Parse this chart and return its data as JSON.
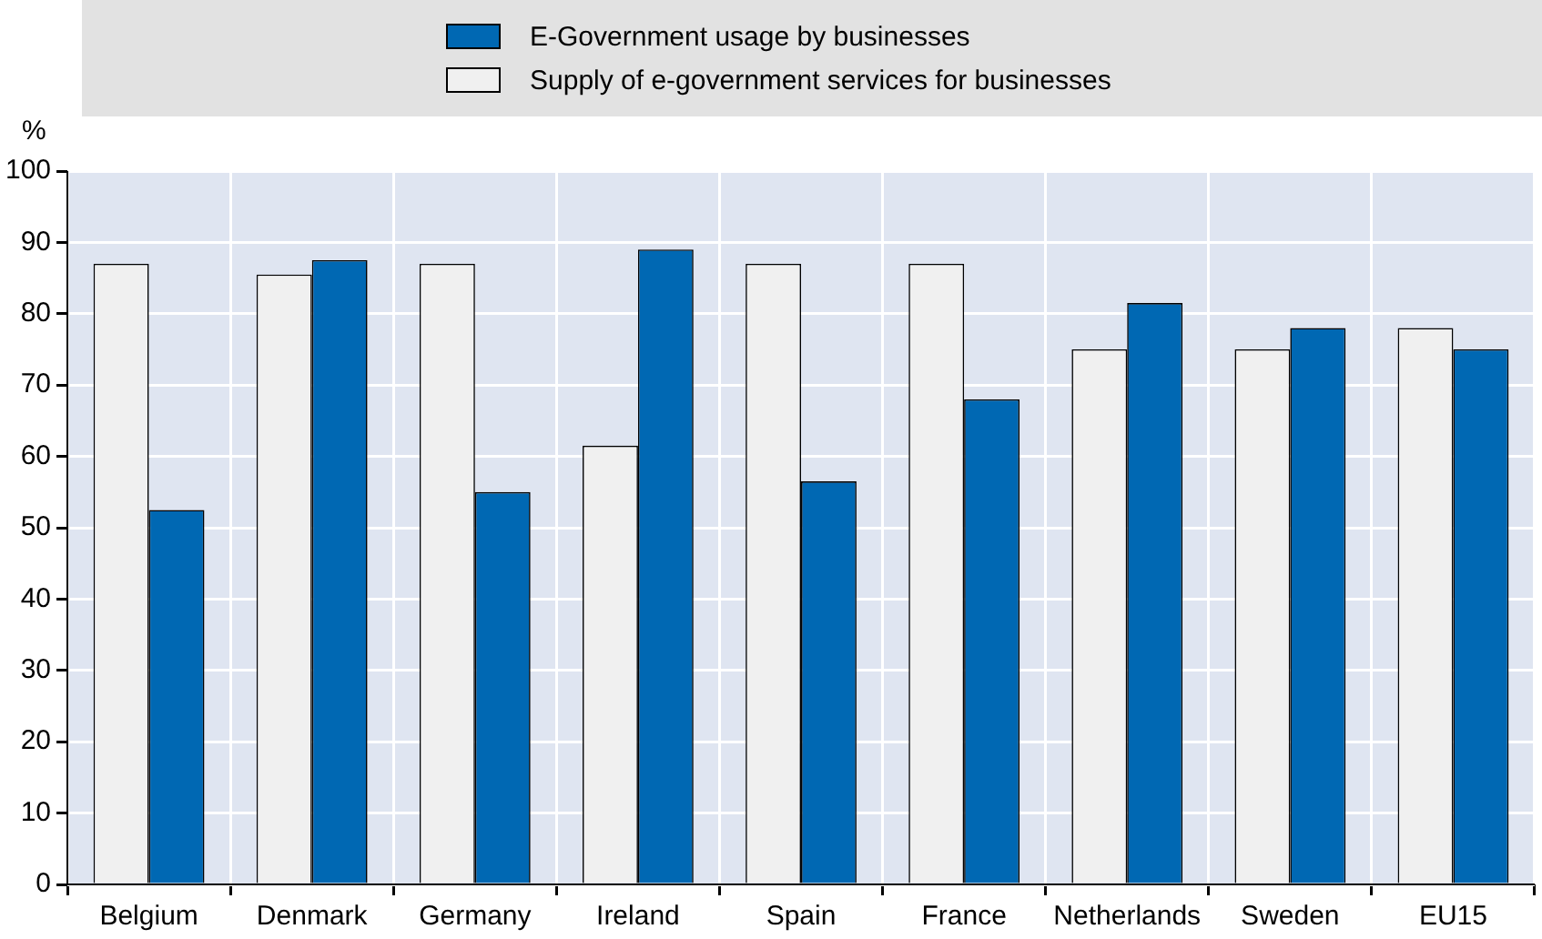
{
  "chart_data": {
    "type": "bar",
    "ylabel": "%",
    "categories": [
      "Belgium",
      "Denmark",
      "Germany",
      "Ireland",
      "Spain",
      "France",
      "Netherlands",
      "Sweden",
      "EU15"
    ],
    "series": [
      {
        "name": "Supply of e-government services for businesses",
        "color": "#f0f0f0",
        "values": [
          87,
          85.5,
          87,
          61.5,
          87,
          87,
          75,
          75,
          78
        ]
      },
      {
        "name": "E-Government usage by businesses",
        "color": "#0068b3",
        "values": [
          52.5,
          87.5,
          55,
          89,
          56.5,
          68,
          81.5,
          78,
          75
        ]
      }
    ],
    "ylim": [
      0,
      100
    ],
    "yticks": [
      0,
      10,
      20,
      30,
      40,
      50,
      60,
      70,
      80,
      90,
      100
    ],
    "grid": true,
    "legend": "top"
  }
}
